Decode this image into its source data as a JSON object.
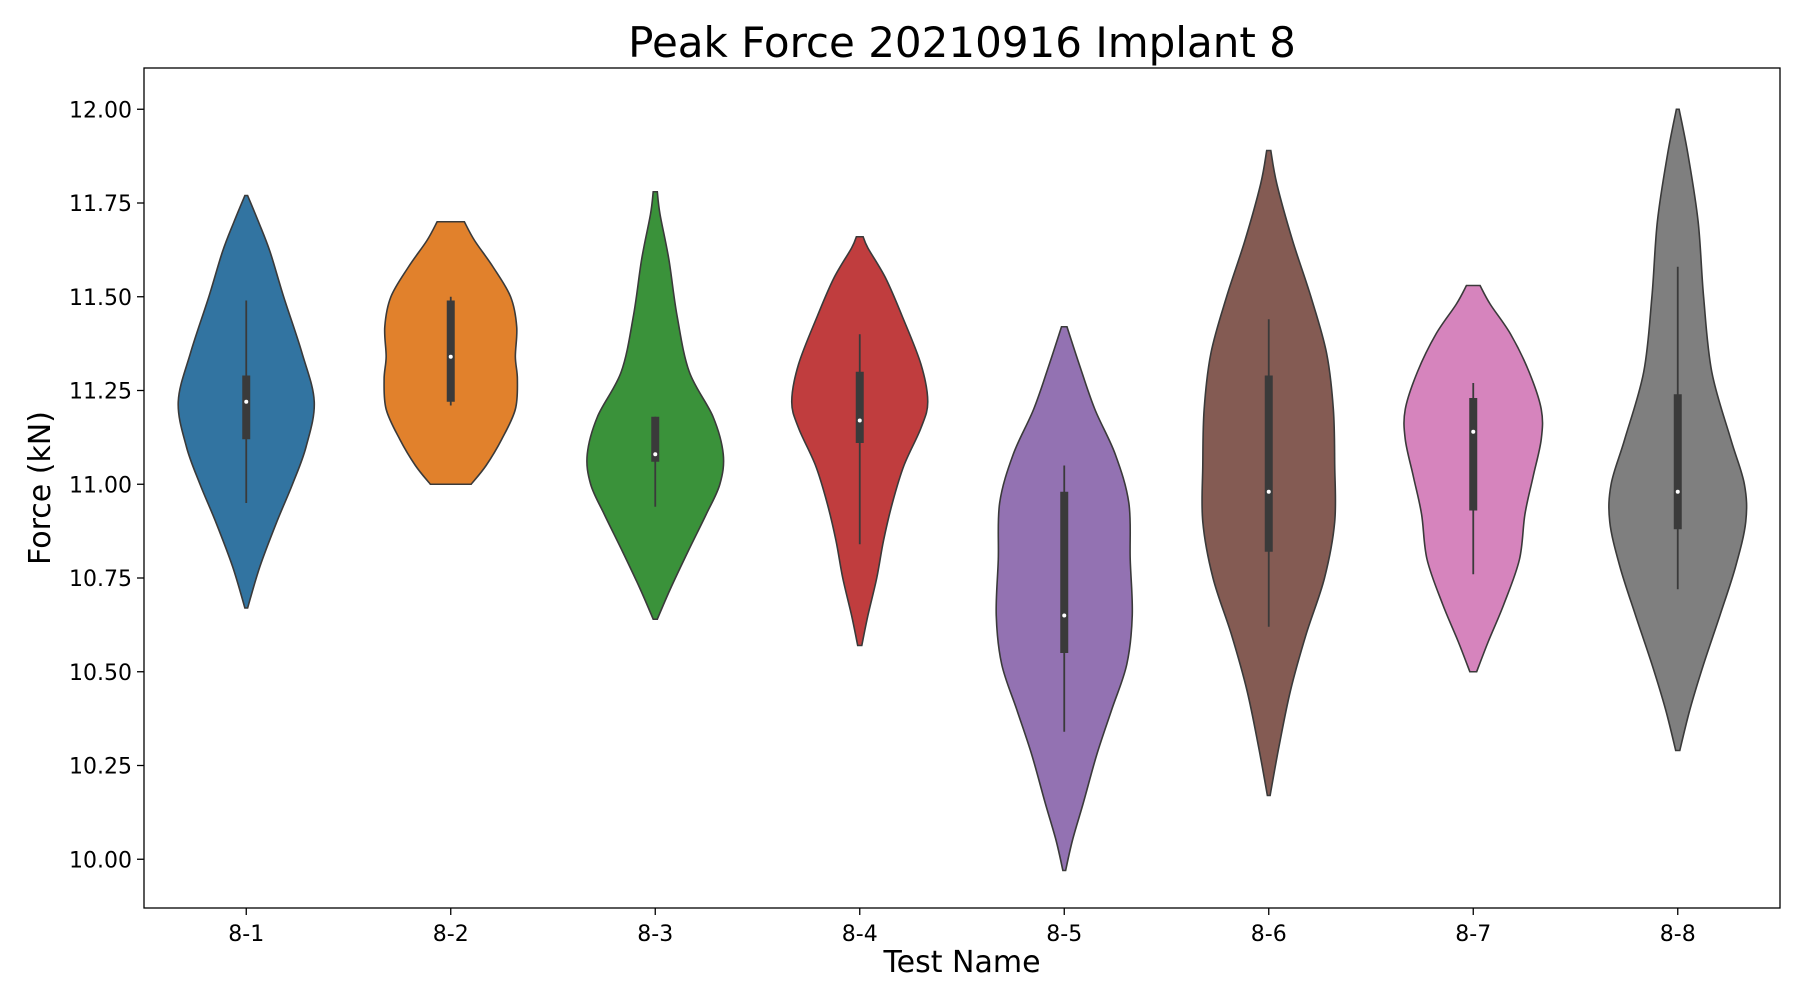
{
  "chart_data": {
    "type": "violin",
    "title": "Peak Force 20210916 Implant 8",
    "xlabel": "Test Name",
    "ylabel": "Force (kN)",
    "ylim": [
      9.87,
      12.11
    ],
    "yticks": [
      "10.00",
      "10.25",
      "10.50",
      "10.75",
      "11.00",
      "11.25",
      "11.50",
      "11.75",
      "12.00"
    ],
    "ytick_values": [
      10.0,
      10.25,
      10.5,
      10.75,
      11.0,
      11.25,
      11.5,
      11.75,
      12.0
    ],
    "grid": false,
    "legend": "none",
    "categories": [
      "8-1",
      "8-2",
      "8-3",
      "8-4",
      "8-5",
      "8-6",
      "8-7",
      "8-8"
    ],
    "series": [
      {
        "category": "8-1",
        "color": "#3274a1",
        "min": 10.67,
        "max": 11.77,
        "whisker_low": 10.95,
        "whisker_high": 11.49,
        "q1": 11.12,
        "q3": 11.29,
        "median": 11.22,
        "density_y": [
          10.67,
          10.78,
          10.9,
          11.0,
          11.1,
          11.22,
          11.35,
          11.5,
          11.62,
          11.7,
          11.77
        ],
        "density_w": [
          0.02,
          0.2,
          0.45,
          0.68,
          0.88,
          1.0,
          0.82,
          0.55,
          0.35,
          0.18,
          0.02
        ]
      },
      {
        "category": "8-2",
        "color": "#e1812c",
        "min": 11.0,
        "max": 11.7,
        "whisker_low": 11.21,
        "whisker_high": 11.5,
        "q1": 11.22,
        "q3": 11.49,
        "median": 11.34,
        "density_y": [
          11.0,
          11.05,
          11.12,
          11.2,
          11.28,
          11.34,
          11.42,
          11.5,
          11.58,
          11.65,
          11.7
        ],
        "density_w": [
          0.3,
          0.52,
          0.75,
          0.95,
          0.98,
          0.95,
          0.97,
          0.88,
          0.62,
          0.35,
          0.2
        ]
      },
      {
        "category": "8-3",
        "color": "#3a923a",
        "min": 10.64,
        "max": 11.78,
        "whisker_low": 10.94,
        "whisker_high": 11.18,
        "q1": 11.06,
        "q3": 11.18,
        "median": 11.08,
        "density_y": [
          10.64,
          10.72,
          10.82,
          10.92,
          11.0,
          11.08,
          11.18,
          11.3,
          11.45,
          11.6,
          11.72,
          11.78
        ],
        "density_w": [
          0.03,
          0.22,
          0.48,
          0.75,
          0.95,
          1.0,
          0.85,
          0.5,
          0.32,
          0.2,
          0.07,
          0.03
        ]
      },
      {
        "category": "8-4",
        "color": "#c03d3e",
        "min": 10.57,
        "max": 11.66,
        "whisker_low": 10.84,
        "whisker_high": 11.4,
        "q1": 11.11,
        "q3": 11.3,
        "median": 11.17,
        "density_y": [
          10.57,
          10.65,
          10.75,
          10.85,
          10.95,
          11.05,
          11.15,
          11.22,
          11.32,
          11.45,
          11.55,
          11.63,
          11.66
        ],
        "density_w": [
          0.03,
          0.12,
          0.25,
          0.35,
          0.48,
          0.65,
          0.9,
          1.0,
          0.9,
          0.62,
          0.38,
          0.12,
          0.05
        ]
      },
      {
        "category": "8-5",
        "color": "#9372b2",
        "min": 9.97,
        "max": 11.42,
        "whisker_low": 10.34,
        "whisker_high": 11.05,
        "q1": 10.55,
        "q3": 10.98,
        "median": 10.65,
        "density_y": [
          9.97,
          10.05,
          10.15,
          10.28,
          10.4,
          10.52,
          10.65,
          10.8,
          10.95,
          11.08,
          11.2,
          11.32,
          11.42
        ],
        "density_w": [
          0.02,
          0.12,
          0.28,
          0.48,
          0.7,
          0.92,
          1.0,
          0.97,
          0.95,
          0.75,
          0.45,
          0.22,
          0.04
        ]
      },
      {
        "category": "8-6",
        "color": "#845b53",
        "min": 10.17,
        "max": 11.89,
        "whisker_low": 10.62,
        "whisker_high": 11.44,
        "q1": 10.82,
        "q3": 11.29,
        "median": 10.98,
        "density_y": [
          10.17,
          10.3,
          10.45,
          10.6,
          10.75,
          10.9,
          11.05,
          11.2,
          11.35,
          11.5,
          11.65,
          11.8,
          11.89
        ],
        "density_w": [
          0.02,
          0.15,
          0.32,
          0.55,
          0.82,
          0.97,
          0.97,
          0.95,
          0.85,
          0.62,
          0.35,
          0.12,
          0.03
        ]
      },
      {
        "category": "8-7",
        "color": "#d684bd",
        "min": 10.5,
        "max": 11.53,
        "whisker_low": 10.76,
        "whisker_high": 11.27,
        "q1": 10.93,
        "q3": 11.23,
        "median": 11.14,
        "density_y": [
          10.5,
          10.58,
          10.68,
          10.8,
          10.92,
          11.02,
          11.12,
          11.2,
          11.3,
          11.4,
          11.48,
          11.53
        ],
        "density_w": [
          0.05,
          0.22,
          0.45,
          0.68,
          0.76,
          0.88,
          1.0,
          1.0,
          0.82,
          0.55,
          0.25,
          0.1
        ]
      },
      {
        "category": "8-8",
        "color": "#7f7f7f",
        "min": 10.29,
        "max": 12.0,
        "whisker_low": 10.72,
        "whisker_high": 11.58,
        "q1": 10.88,
        "q3": 11.24,
        "median": 10.98,
        "density_y": [
          10.29,
          10.4,
          10.52,
          10.65,
          10.78,
          10.9,
          11.0,
          11.12,
          11.3,
          11.5,
          11.7,
          11.88,
          12.0
        ],
        "density_w": [
          0.03,
          0.18,
          0.38,
          0.62,
          0.85,
          1.0,
          0.98,
          0.78,
          0.5,
          0.38,
          0.3,
          0.15,
          0.02
        ]
      }
    ]
  }
}
